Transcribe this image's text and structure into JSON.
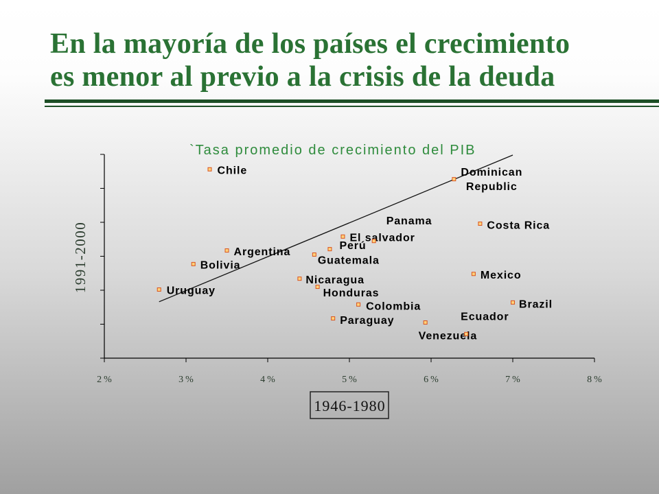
{
  "slide": {
    "title_lines": [
      "En la mayoría de los países el crecimiento",
      "es menor al previo a la crisis de la deuda"
    ]
  },
  "colors": {
    "slide_title": "#2a7234",
    "rules": "#1d4f26",
    "chart_title": "#2e8b3c",
    "axis_text": "#2c3d2f",
    "marker_fill": "#ffd27a",
    "marker_stroke": "#d9531e"
  },
  "chart_data": {
    "type": "scatter",
    "title": "`Tasa promedio de crecimiento del PIB",
    "xlabel": "1946-1980",
    "ylabel": "1991-2000",
    "x_ticks": [
      2,
      3,
      4,
      5,
      6,
      7,
      8
    ],
    "x_tick_labels": [
      "2%",
      "3%",
      "4%",
      "5%",
      "6%",
      "7%",
      "8%"
    ],
    "xlim": [
      2,
      8
    ],
    "ylim": [
      1,
      7
    ],
    "grid": false,
    "points": [
      {
        "label": "Chile",
        "x": 3.29,
        "y": 6.56
      },
      {
        "label": "Dominican Republic",
        "x": 6.28,
        "y": 6.27
      },
      {
        "label": "Costa Rica",
        "x": 6.6,
        "y": 4.96
      },
      {
        "label": "Panama",
        "x": 5.3,
        "y": 4.45
      },
      {
        "label": "El salvador",
        "x": 4.92,
        "y": 4.58
      },
      {
        "label": "Perú",
        "x": 4.76,
        "y": 4.21
      },
      {
        "label": "Argentina",
        "x": 3.5,
        "y": 4.17
      },
      {
        "label": "Guatemala",
        "x": 4.57,
        "y": 4.05
      },
      {
        "label": "Bolivia",
        "x": 3.09,
        "y": 3.77
      },
      {
        "label": "Mexico",
        "x": 6.52,
        "y": 3.48
      },
      {
        "label": "Nicaragua",
        "x": 4.39,
        "y": 3.34
      },
      {
        "label": "Honduras",
        "x": 4.61,
        "y": 3.1
      },
      {
        "label": "Uruguay",
        "x": 2.67,
        "y": 3.02
      },
      {
        "label": "Colombia",
        "x": 5.11,
        "y": 2.58
      },
      {
        "label": "Brazil",
        "x": 7.0,
        "y": 2.64
      },
      {
        "label": "Paraguay",
        "x": 4.8,
        "y": 2.17
      },
      {
        "label": "Venezuela",
        "x": 5.93,
        "y": 2.05
      },
      {
        "label": "Ecuador",
        "x": 6.43,
        "y": 1.71
      }
    ],
    "trendline": {
      "x": [
        2.67,
        7.0
      ],
      "y": [
        2.66,
        6.98
      ]
    }
  }
}
